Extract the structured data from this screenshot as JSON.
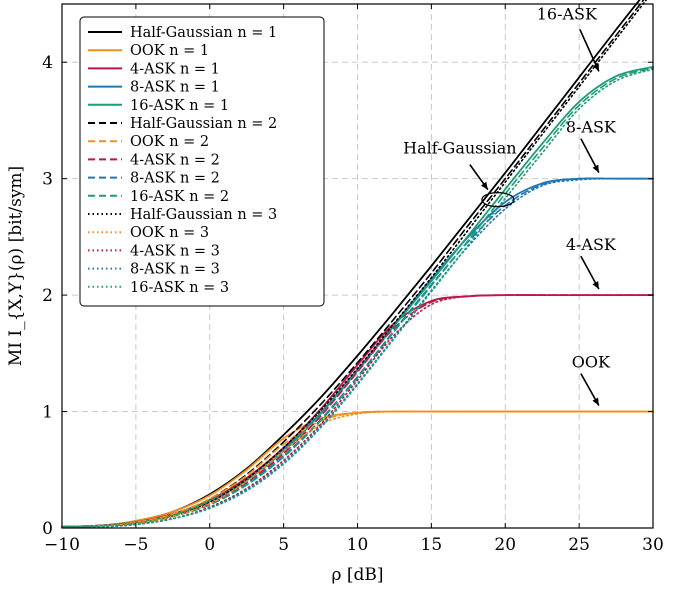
{
  "chart_data": {
    "type": "line",
    "xlabel": "ρ [dB]",
    "ylabel": "MI I_{X,Y}(ρ) [bit/sym]",
    "xlim": [
      -10,
      30
    ],
    "ylim": [
      0,
      4.5
    ],
    "xticks": [
      -10,
      -5,
      0,
      5,
      10,
      15,
      20,
      25,
      30
    ],
    "yticks": [
      0,
      1,
      2,
      3,
      4
    ],
    "grid": true,
    "legend_position": "top-left",
    "colors": {
      "Half-Gaussian": "#000000",
      "OOK": "#f28e1b",
      "4-ASK": "#c0144a",
      "8-ASK": "#1f77b4",
      "16-ASK": "#1a9e77"
    },
    "line_styles": {
      "1": "solid",
      "2": "dashed",
      "3": "dotted"
    },
    "x": [
      -10,
      -7.5,
      -5,
      -2.5,
      0,
      2.5,
      5,
      7.5,
      10,
      12.5,
      15,
      17.5,
      20,
      22.5,
      25,
      27.5,
      30
    ],
    "series": [
      {
        "name": "Half-Gaussian n = 1",
        "scheme": "Half-Gaussian",
        "n": 1,
        "values": [
          0.01,
          0.02,
          0.06,
          0.14,
          0.29,
          0.51,
          0.8,
          1.12,
          1.48,
          1.86,
          2.25,
          2.65,
          3.05,
          3.46,
          3.87,
          4.28,
          4.68
        ]
      },
      {
        "name": "OOK n = 1",
        "scheme": "OOK",
        "n": 1,
        "values": [
          0.01,
          0.02,
          0.06,
          0.14,
          0.28,
          0.5,
          0.77,
          0.94,
          0.99,
          1.0,
          1.0,
          1.0,
          1.0,
          1.0,
          1.0,
          1.0,
          1.0
        ]
      },
      {
        "name": "4-ASK n = 1",
        "scheme": "4-ASK",
        "n": 1,
        "values": [
          0.01,
          0.02,
          0.05,
          0.12,
          0.24,
          0.43,
          0.69,
          1.02,
          1.4,
          1.76,
          1.95,
          1.99,
          2.0,
          2.0,
          2.0,
          2.0,
          2.0
        ]
      },
      {
        "name": "8-ASK n = 1",
        "scheme": "8-ASK",
        "n": 1,
        "values": [
          0.01,
          0.02,
          0.05,
          0.11,
          0.23,
          0.41,
          0.67,
          0.99,
          1.36,
          1.75,
          2.14,
          2.5,
          2.8,
          2.96,
          3.0,
          3.0,
          3.0
        ]
      },
      {
        "name": "16-ASK n = 1",
        "scheme": "16-ASK",
        "n": 1,
        "values": [
          0.01,
          0.02,
          0.05,
          0.11,
          0.23,
          0.41,
          0.66,
          0.98,
          1.35,
          1.74,
          2.12,
          2.51,
          2.91,
          3.3,
          3.66,
          3.88,
          3.96
        ]
      },
      {
        "name": "Half-Gaussian n = 2",
        "scheme": "Half-Gaussian",
        "n": 2,
        "values": [
          0.01,
          0.02,
          0.05,
          0.12,
          0.25,
          0.46,
          0.74,
          1.06,
          1.42,
          1.8,
          2.19,
          2.6,
          3.0,
          3.41,
          3.82,
          4.23,
          4.64
        ]
      },
      {
        "name": "OOK n = 2",
        "scheme": "OOK",
        "n": 2,
        "values": [
          0.01,
          0.02,
          0.05,
          0.12,
          0.25,
          0.45,
          0.72,
          0.92,
          0.99,
          1.0,
          1.0,
          1.0,
          1.0,
          1.0,
          1.0,
          1.0,
          1.0
        ]
      },
      {
        "name": "4-ASK n = 2",
        "scheme": "4-ASK",
        "n": 2,
        "values": [
          0.01,
          0.02,
          0.04,
          0.1,
          0.21,
          0.39,
          0.64,
          0.96,
          1.34,
          1.72,
          1.94,
          1.99,
          2.0,
          2.0,
          2.0,
          2.0,
          2.0
        ]
      },
      {
        "name": "8-ASK n = 2",
        "scheme": "8-ASK",
        "n": 2,
        "values": [
          0.01,
          0.02,
          0.04,
          0.1,
          0.2,
          0.38,
          0.62,
          0.93,
          1.3,
          1.7,
          2.09,
          2.46,
          2.77,
          2.95,
          3.0,
          3.0,
          3.0
        ]
      },
      {
        "name": "16-ASK n = 2",
        "scheme": "16-ASK",
        "n": 2,
        "values": [
          0.01,
          0.02,
          0.04,
          0.1,
          0.2,
          0.37,
          0.61,
          0.92,
          1.29,
          1.69,
          2.08,
          2.47,
          2.87,
          3.26,
          3.63,
          3.86,
          3.95
        ]
      },
      {
        "name": "Half-Gaussian n = 3",
        "scheme": "Half-Gaussian",
        "n": 3,
        "values": [
          0.01,
          0.02,
          0.04,
          0.1,
          0.22,
          0.42,
          0.69,
          1.01,
          1.37,
          1.76,
          2.15,
          2.56,
          2.97,
          3.38,
          3.79,
          4.2,
          4.61
        ]
      },
      {
        "name": "OOK n = 3",
        "scheme": "OOK",
        "n": 3,
        "values": [
          0.01,
          0.02,
          0.04,
          0.1,
          0.21,
          0.4,
          0.66,
          0.89,
          0.98,
          1.0,
          1.0,
          1.0,
          1.0,
          1.0,
          1.0,
          1.0,
          1.0
        ]
      },
      {
        "name": "4-ASK n = 3",
        "scheme": "4-ASK",
        "n": 3,
        "values": [
          0.01,
          0.01,
          0.03,
          0.08,
          0.18,
          0.34,
          0.58,
          0.89,
          1.27,
          1.66,
          1.92,
          1.99,
          2.0,
          2.0,
          2.0,
          2.0,
          2.0
        ]
      },
      {
        "name": "8-ASK n = 3",
        "scheme": "8-ASK",
        "n": 3,
        "values": [
          0.01,
          0.01,
          0.03,
          0.08,
          0.17,
          0.33,
          0.56,
          0.87,
          1.24,
          1.64,
          2.04,
          2.42,
          2.74,
          2.94,
          2.99,
          3.0,
          3.0
        ]
      },
      {
        "name": "16-ASK n = 3",
        "scheme": "16-ASK",
        "n": 3,
        "values": [
          0.01,
          0.01,
          0.03,
          0.08,
          0.17,
          0.32,
          0.55,
          0.86,
          1.23,
          1.63,
          2.03,
          2.43,
          2.83,
          3.22,
          3.6,
          3.84,
          3.94
        ]
      }
    ],
    "annotations": [
      {
        "text": "16-ASK",
        "x": 26.2,
        "y": 3.87
      },
      {
        "text": "8-ASK",
        "x": 26.2,
        "y": 3.0
      },
      {
        "text": "4-ASK",
        "x": 26.2,
        "y": 2.0
      },
      {
        "text": "OOK",
        "x": 26.2,
        "y": 1.0
      },
      {
        "text": "Half-Gaussian",
        "x": 19.5,
        "y": 2.82
      }
    ]
  }
}
